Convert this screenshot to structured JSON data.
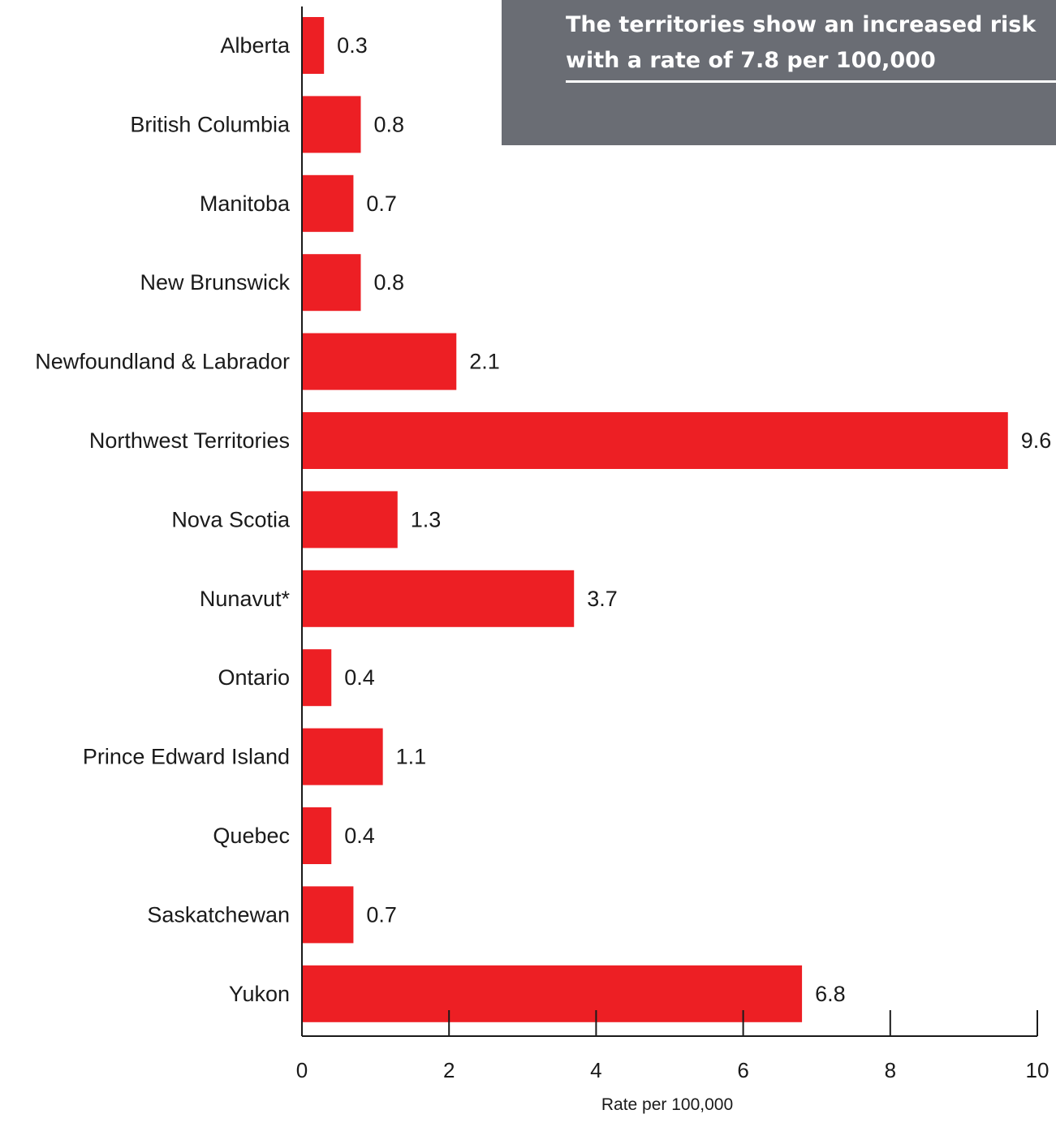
{
  "callout": {
    "text": "The territories show an increased risk with a rate of 7.8 per 100,000"
  },
  "chart_data": {
    "type": "bar",
    "orientation": "horizontal",
    "categories": [
      "Alberta",
      "British Columbia",
      "Manitoba",
      "New Brunswick",
      "Newfoundland & Labrador",
      "Northwest Territories",
      "Nova Scotia",
      "Nunavut*",
      "Ontario",
      "Prince Edward Island",
      "Quebec",
      "Saskatchewan",
      "Yukon"
    ],
    "values": [
      0.3,
      0.8,
      0.7,
      0.8,
      2.1,
      9.6,
      1.3,
      3.7,
      0.4,
      1.1,
      0.4,
      0.7,
      6.8
    ],
    "value_labels": [
      "0.3",
      "0.8",
      "0.7",
      "0.8",
      "2.1",
      "9.6",
      "1.3",
      "3.7",
      "0.4",
      "1.1",
      "0.4",
      "0.7",
      "6.8"
    ],
    "xlabel": "Rate per 100,000",
    "ylabel": "",
    "xlim": [
      0,
      10
    ],
    "xticks": [
      0,
      2,
      4,
      6,
      8,
      10
    ],
    "bar_color": "#ed1f24",
    "callout_color": "#6a6d74",
    "grid": false
  }
}
